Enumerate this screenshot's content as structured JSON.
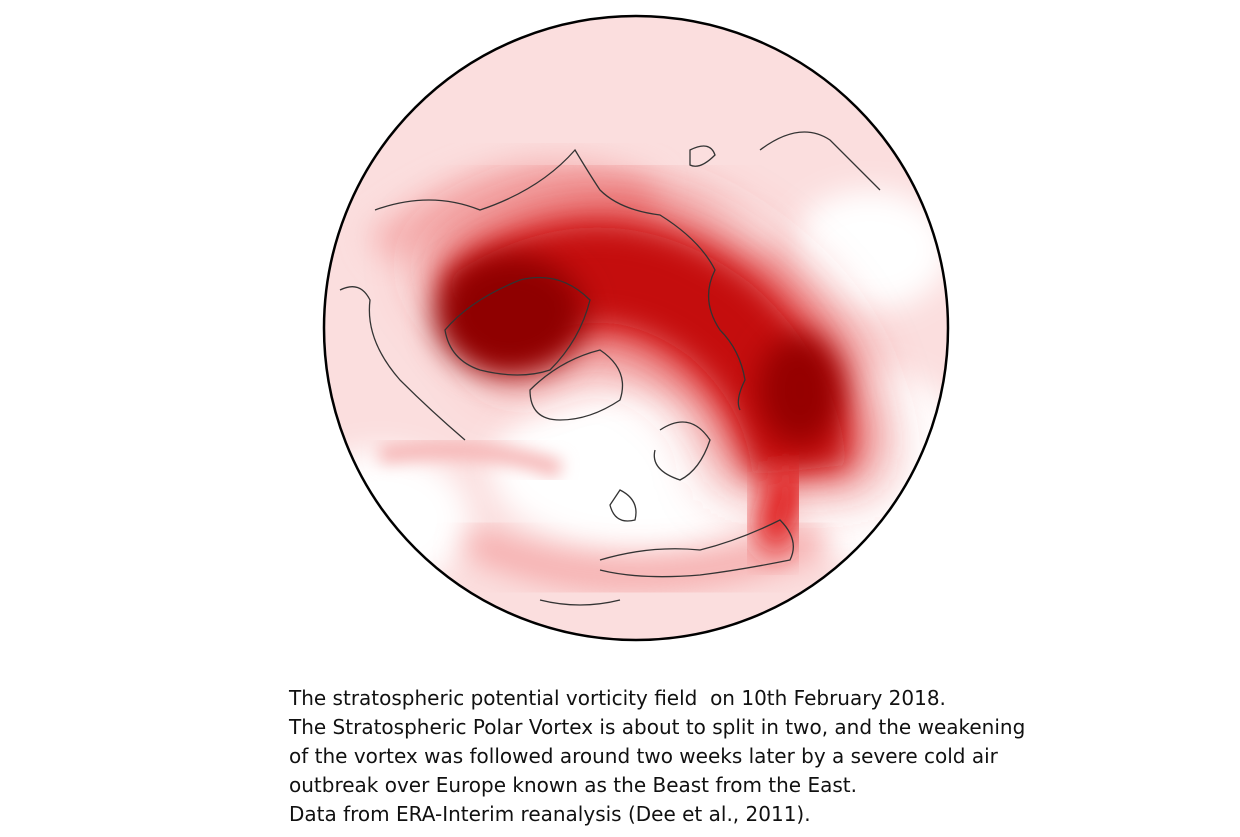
{
  "caption": {
    "lines": [
      "The stratospheric potential vorticity field  on 10th February 2018.",
      "The Stratospheric Polar Vortex is about to split in two, and the weakening",
      "of the vortex was followed around two weeks later by a severe cold air",
      "outbreak over Europe known as the Beast from the East.",
      "Data from ERA-Interim reanalysis (Dee et al., 2011)."
    ]
  }
}
